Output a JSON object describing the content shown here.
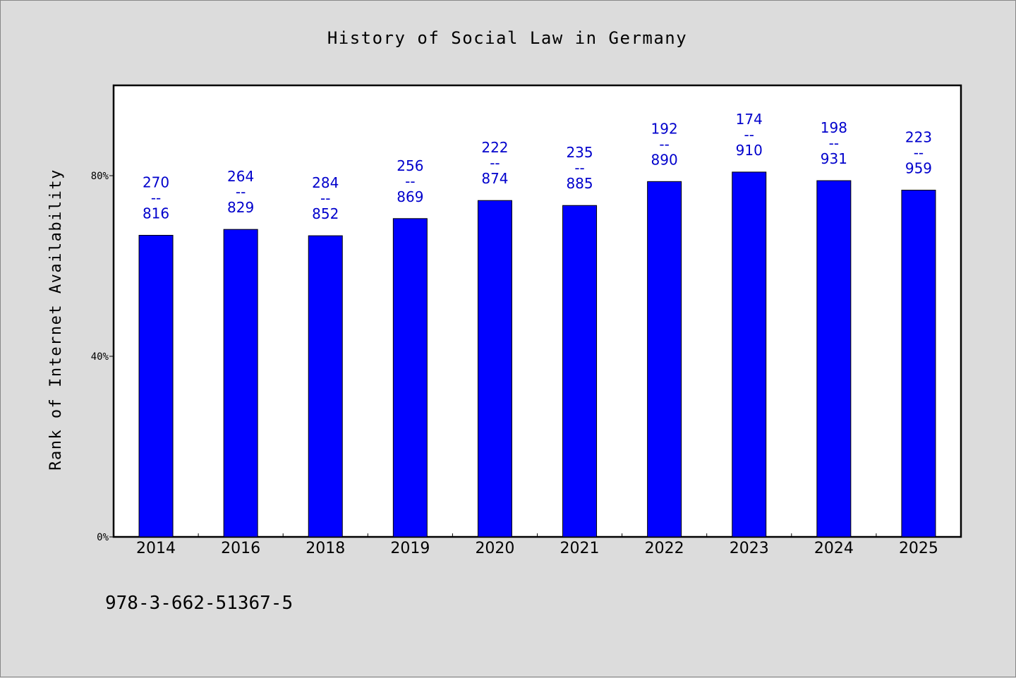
{
  "chart_data": {
    "type": "bar",
    "title": "History of Social Law in Germany",
    "ylabel": "Rank of Internet Availability",
    "xlabel": "",
    "categories": [
      "2014",
      "2016",
      "2018",
      "2019",
      "2020",
      "2021",
      "2022",
      "2023",
      "2024",
      "2025"
    ],
    "values": [
      66.8,
      68.1,
      66.7,
      70.5,
      74.5,
      73.4,
      78.7,
      80.8,
      78.9,
      76.8
    ],
    "data_labels": [
      {
        "top": "270",
        "sep": "--",
        "bottom": "816"
      },
      {
        "top": "264",
        "sep": "--",
        "bottom": "829"
      },
      {
        "top": "284",
        "sep": "--",
        "bottom": "852"
      },
      {
        "top": "256",
        "sep": "--",
        "bottom": "869"
      },
      {
        "top": "222",
        "sep": "--",
        "bottom": "874"
      },
      {
        "top": "235",
        "sep": "--",
        "bottom": "885"
      },
      {
        "top": "192",
        "sep": "--",
        "bottom": "890"
      },
      {
        "top": "174",
        "sep": "--",
        "bottom": "910"
      },
      {
        "top": "198",
        "sep": "--",
        "bottom": "931"
      },
      {
        "top": "223",
        "sep": "--",
        "bottom": "959"
      }
    ],
    "yticks": [
      {
        "value": 0,
        "label": "0%"
      },
      {
        "value": 40,
        "label": "40%"
      },
      {
        "value": 80,
        "label": "80%"
      }
    ],
    "ylim": [
      0,
      100
    ],
    "grid": false,
    "colors": {
      "bar": "#0000ff",
      "label": "#0000cc",
      "background": "#dcdcdc",
      "plot_area": "#ffffff"
    }
  },
  "footer": {
    "text": "978-3-662-51367-5"
  }
}
